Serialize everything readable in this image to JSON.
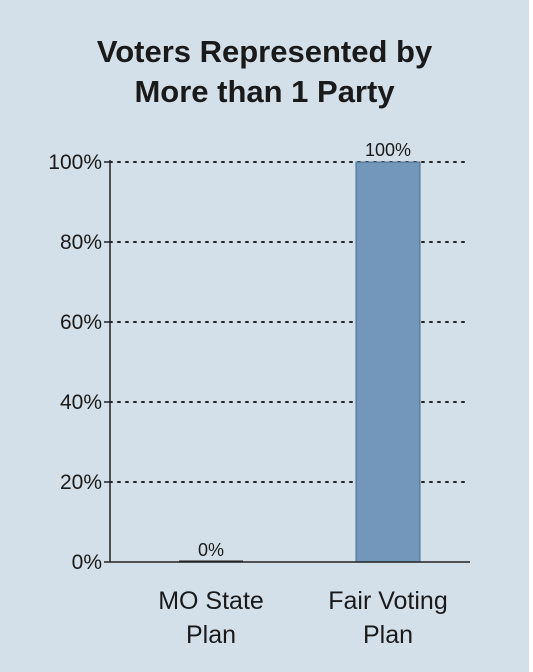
{
  "chart_data": {
    "type": "bar",
    "title_lines": [
      "Voters Represented by",
      "More than 1 Party"
    ],
    "categories": [
      [
        "MO State",
        "Plan"
      ],
      [
        "Fair Voting",
        "Plan"
      ]
    ],
    "values": [
      0,
      100
    ],
    "data_labels": [
      "0%",
      "100%"
    ],
    "y_ticks": [
      0,
      20,
      40,
      60,
      80,
      100
    ],
    "y_tick_labels": [
      "0%",
      "20%",
      "40%",
      "60%",
      "80%",
      "100%"
    ],
    "ylim": [
      0,
      100
    ],
    "xlabel": "",
    "ylabel": "",
    "grid": "dotted-horizontal",
    "bar_color": "#7397bb",
    "background_color": "#d4e0e9"
  }
}
